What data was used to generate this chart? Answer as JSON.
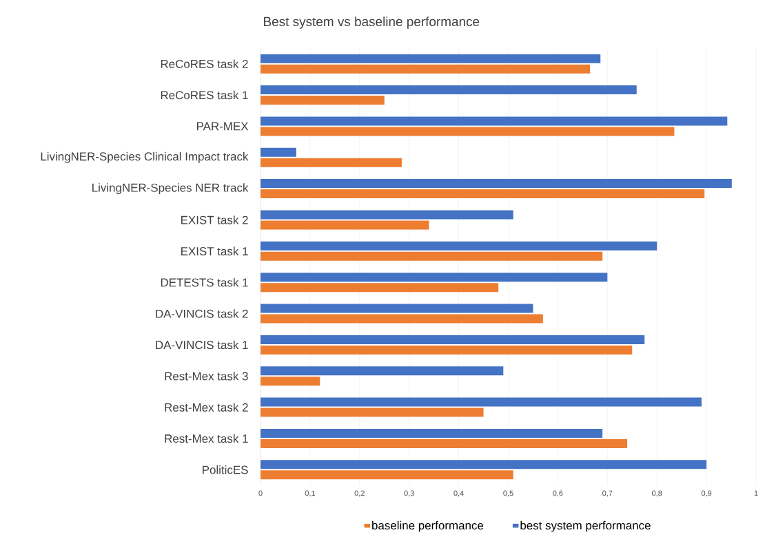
{
  "chart_data": {
    "type": "bar",
    "orientation": "horizontal",
    "title": "Best system vs baseline performance",
    "categories": [
      "ReCoRES task 2",
      "ReCoRES task 1",
      "PAR-MEX",
      "LivingNER-Species Clinical Impact track",
      "LivingNER-Species NER track",
      "EXIST task 2",
      "EXIST task 1",
      "DETESTS task 1",
      "DA-VINCIS task 2",
      "DA-VINCIS task 1",
      "Rest-Mex task 3",
      "Rest-Mex task 2",
      "Rest-Mex task 1",
      "PoliticES"
    ],
    "series": [
      {
        "name": "baseline performance",
        "color": "#ed7d31",
        "values": [
          0.665,
          0.25,
          0.835,
          0.285,
          0.896,
          0.34,
          0.69,
          0.48,
          0.57,
          0.75,
          0.12,
          0.45,
          0.74,
          0.51
        ]
      },
      {
        "name": "best system performance",
        "color": "#4472c4",
        "values": [
          0.686,
          0.759,
          0.942,
          0.072,
          0.951,
          0.51,
          0.8,
          0.7,
          0.55,
          0.775,
          0.49,
          0.89,
          0.69,
          0.9
        ]
      }
    ],
    "xlim": [
      0,
      1
    ],
    "xticks": [
      {
        "value": 0,
        "label": "0"
      },
      {
        "value": 0.1,
        "label": "0,1"
      },
      {
        "value": 0.2,
        "label": "0,2"
      },
      {
        "value": 0.3,
        "label": "0,3"
      },
      {
        "value": 0.4,
        "label": "0,4"
      },
      {
        "value": 0.5,
        "label": "0,5"
      },
      {
        "value": 0.6,
        "label": "0,6"
      },
      {
        "value": 0.7,
        "label": "0,7"
      },
      {
        "value": 0.8,
        "label": "0,8"
      },
      {
        "value": 0.9,
        "label": "0,9"
      },
      {
        "value": 1,
        "label": "1"
      }
    ],
    "grid": "x",
    "legend": "bottom"
  }
}
